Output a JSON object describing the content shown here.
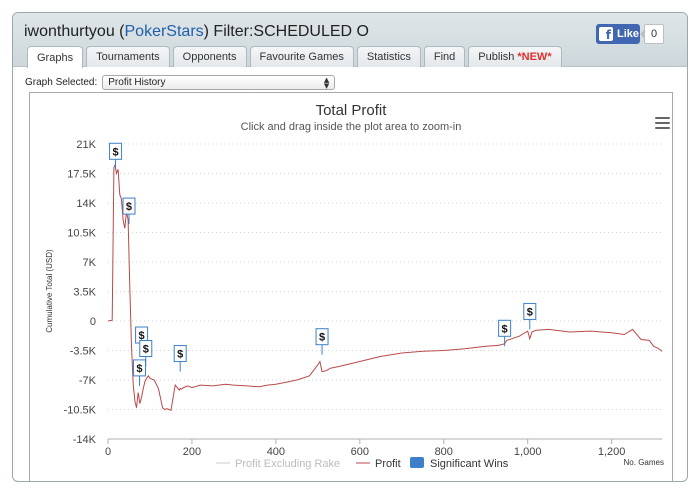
{
  "header": {
    "user": "iwonthurtyou",
    "site": "PokerStars",
    "filter": "Filter:SCHEDULED O"
  },
  "like": {
    "label": "Like",
    "count": "0",
    "fb_glyph": "f"
  },
  "tabs": [
    {
      "label": "Graphs",
      "active": true
    },
    {
      "label": "Tournaments"
    },
    {
      "label": "Opponents"
    },
    {
      "label": "Favourite Games"
    },
    {
      "label": "Statistics"
    },
    {
      "label": "Find"
    },
    {
      "label": "Publish",
      "badge": "*NEW*"
    }
  ],
  "graph_select": {
    "label": "Graph Selected:",
    "value": "Profit History"
  },
  "chart_data": {
    "type": "line",
    "title": "Total Profit",
    "subtitle": "Click and drag inside the plot area to zoom-in",
    "ylabel": "Cumulative Total (USD)",
    "xlabel": "No. Games",
    "ylim": [
      -14000,
      21000
    ],
    "xlim": [
      0,
      1320
    ],
    "yticks": [
      21000,
      17500,
      14000,
      10500,
      7000,
      3500,
      0,
      -3500,
      -7000,
      -10500,
      -14000
    ],
    "ytick_labels": [
      "21K",
      "17.5K",
      "14K",
      "10.5K",
      "7K",
      "3.5K",
      "0",
      "-3.5K",
      "-7K",
      "-10.5K",
      "-14K"
    ],
    "xticks": [
      0,
      200,
      400,
      600,
      800,
      1000,
      1200
    ],
    "xtick_labels": [
      "0",
      "200",
      "400",
      "600",
      "800",
      "1,000",
      "1,200"
    ],
    "grid": "horizontal-dotted",
    "legend_position": "bottom",
    "series": [
      {
        "name": "Profit Excluding Rake",
        "color": "#cccccc",
        "values": []
      },
      {
        "name": "Profit",
        "color": "#b94a4a",
        "x": [
          0,
          10,
          14,
          17,
          20,
          24,
          28,
          32,
          36,
          40,
          44,
          48,
          52,
          56,
          60,
          64,
          68,
          72,
          76,
          80,
          84,
          88,
          92,
          96,
          100,
          110,
          120,
          130,
          135,
          140,
          145,
          150,
          160,
          170,
          172,
          175,
          180,
          190,
          200,
          220,
          250,
          280,
          300,
          330,
          360,
          380,
          400,
          430,
          450,
          480,
          500,
          505,
          510,
          520,
          530,
          550,
          600,
          650,
          700,
          750,
          800,
          850,
          900,
          930,
          945,
          950,
          980,
          1000,
          1005,
          1010,
          1020,
          1050,
          1100,
          1150,
          1200,
          1230,
          1250,
          1270,
          1290,
          1300,
          1310,
          1320
        ],
        "values": [
          0,
          100,
          18200,
          18500,
          17500,
          18000,
          15000,
          14500,
          12000,
          11000,
          13000,
          12000,
          4000,
          -3000,
          -7500,
          -9500,
          -10300,
          -8500,
          -9800,
          -9000,
          -8000,
          -7200,
          -6800,
          -6500,
          -6800,
          -7000,
          -8000,
          -10300,
          -10500,
          -10400,
          -10500,
          -10600,
          -7600,
          -8200,
          -8000,
          -8100,
          -7900,
          -7700,
          -7900,
          -7600,
          -7700,
          -7500,
          -7600,
          -7700,
          -7800,
          -7600,
          -7500,
          -7200,
          -7000,
          -6500,
          -5200,
          -4800,
          -6000,
          -5900,
          -5600,
          -5400,
          -4800,
          -4200,
          -3800,
          -3600,
          -3500,
          -3300,
          -3000,
          -2900,
          -2700,
          -2300,
          -1800,
          -1200,
          -2100,
          -1300,
          -1100,
          -1000,
          -1300,
          -1200,
          -1400,
          -1600,
          -1000,
          -2200,
          -2300,
          -3000,
          -3200,
          -3600
        ]
      },
      {
        "name": "Significant Wins",
        "color": "#3d7fc9",
        "marker_label": "$",
        "points": [
          {
            "x": 18,
            "y": 18000
          },
          {
            "x": 50,
            "y": 11500
          },
          {
            "x": 80,
            "y": -3800
          },
          {
            "x": 90,
            "y": -5400
          },
          {
            "x": 75,
            "y": -7700
          },
          {
            "x": 172,
            "y": -6000
          },
          {
            "x": 510,
            "y": -4000
          },
          {
            "x": 945,
            "y": -3000
          },
          {
            "x": 1005,
            "y": -1000
          }
        ]
      }
    ]
  }
}
